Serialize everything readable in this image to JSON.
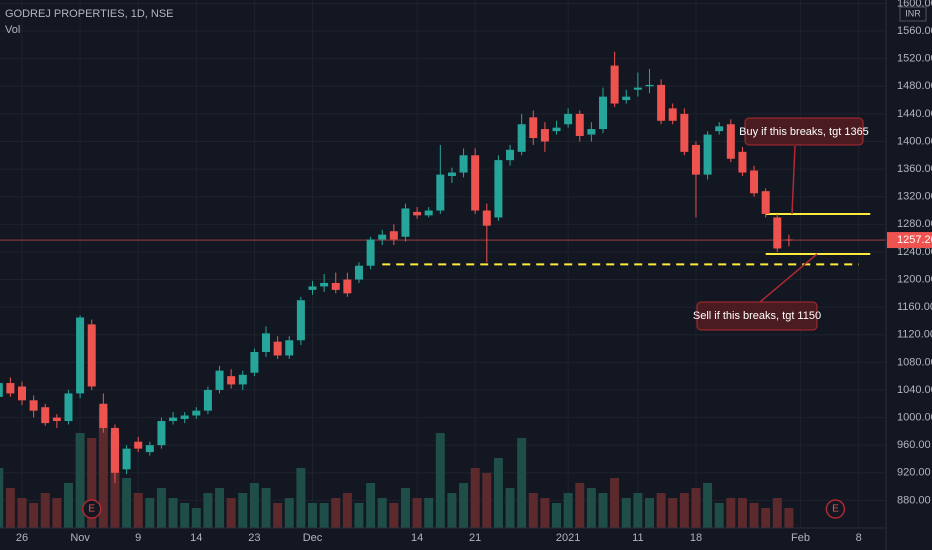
{
  "chart_data": {
    "type": "candlestick",
    "title": "GODREJ PROPERTIES, 1D, NSE",
    "volume_title": "Vol",
    "currency": "INR",
    "categories": [
      null,
      null,
      "26",
      null,
      null,
      null,
      null,
      "Nov",
      null,
      null,
      null,
      null,
      "9",
      null,
      null,
      null,
      null,
      "14",
      null,
      null,
      null,
      null,
      "23",
      null,
      null,
      null,
      null,
      "Dec",
      null,
      null,
      null,
      null,
      null,
      null,
      null,
      null,
      "14",
      null,
      null,
      null,
      null,
      "21",
      null,
      null,
      null,
      null,
      null,
      null,
      null,
      "2021",
      null,
      null,
      null,
      null,
      null,
      "11",
      null,
      null,
      null,
      null,
      "18",
      null,
      null,
      null,
      null,
      null,
      null,
      null,
      null,
      "Feb",
      null,
      null,
      null,
      null,
      "8",
      null,
      null
    ],
    "open": [
      1030,
      1050,
      1045,
      1025,
      1015,
      1000,
      995,
      1035,
      1135,
      1020,
      985,
      925,
      965,
      950,
      960,
      995,
      998,
      1003,
      1010,
      1040,
      1060,
      1048,
      1065,
      1095,
      1110,
      1090,
      1112,
      1185,
      1190,
      1195,
      1200,
      1200,
      1220,
      1258,
      1270,
      1262,
      1298,
      1293,
      1300,
      1350,
      1355,
      1380,
      1300,
      1290,
      1373,
      1385,
      1435,
      1418,
      1415,
      1425,
      1440,
      1410,
      1418,
      1510,
      1460,
      1475,
      1480,
      1482,
      1448,
      1440,
      1395,
      1352,
      1415,
      1425,
      1385,
      1358,
      1328,
      1290,
      1258,
      null,
      null,
      null,
      null,
      null,
      null,
      null,
      null
    ],
    "high": [
      1062,
      1058,
      1052,
      1032,
      1020,
      1005,
      1040,
      1148,
      1142,
      1035,
      990,
      960,
      972,
      965,
      1000,
      1008,
      1008,
      1015,
      1045,
      1075,
      1070,
      1068,
      1100,
      1132,
      1118,
      1118,
      1175,
      1198,
      1208,
      1210,
      1210,
      1225,
      1262,
      1272,
      1280,
      1310,
      1305,
      1305,
      1395,
      1362,
      1390,
      1390,
      1310,
      1380,
      1395,
      1440,
      1445,
      1428,
      1430,
      1448,
      1445,
      1428,
      1478,
      1530,
      1475,
      1500,
      1505,
      1490,
      1455,
      1448,
      1400,
      1415,
      1428,
      1432,
      1392,
      1365,
      1332,
      1295,
      1265,
      null,
      null,
      null,
      null,
      null,
      null,
      null,
      null
    ],
    "low": [
      1020,
      1030,
      1018,
      1000,
      988,
      985,
      990,
      1028,
      1040,
      978,
      905,
      918,
      950,
      945,
      955,
      990,
      992,
      998,
      1005,
      1035,
      1042,
      1040,
      1060,
      1088,
      1085,
      1085,
      1105,
      1178,
      1182,
      1180,
      1175,
      1195,
      1215,
      1250,
      1250,
      1255,
      1288,
      1290,
      1295,
      1340,
      1348,
      1295,
      1225,
      1285,
      1365,
      1380,
      1395,
      1385,
      1410,
      1420,
      1400,
      1400,
      1412,
      1450,
      1455,
      1465,
      1470,
      1425,
      1425,
      1380,
      1290,
      1345,
      1410,
      1370,
      1350,
      1320,
      1290,
      1240,
      1248,
      null,
      null,
      null,
      null,
      null,
      null,
      null,
      null
    ],
    "close": [
      1050,
      1035,
      1025,
      1010,
      992,
      995,
      1035,
      1145,
      1045,
      985,
      920,
      955,
      955,
      960,
      995,
      1000,
      1003,
      1010,
      1040,
      1068,
      1048,
      1062,
      1095,
      1122,
      1090,
      1112,
      1170,
      1190,
      1195,
      1185,
      1180,
      1220,
      1258,
      1265,
      1258,
      1303,
      1293,
      1300,
      1352,
      1355,
      1380,
      1300,
      1278,
      1373,
      1388,
      1425,
      1405,
      1400,
      1420,
      1440,
      1408,
      1418,
      1465,
      1455,
      1465,
      1478,
      1482,
      1430,
      1430,
      1385,
      1352,
      1410,
      1422,
      1375,
      1355,
      1325,
      1295,
      1245,
      1257.2,
      null,
      null,
      null,
      null,
      null,
      null,
      null,
      null
    ],
    "volume": [
      60,
      40,
      30,
      25,
      35,
      30,
      45,
      95,
      90,
      120,
      95,
      50,
      35,
      30,
      40,
      30,
      25,
      20,
      35,
      40,
      30,
      35,
      45,
      40,
      25,
      30,
      60,
      25,
      25,
      30,
      35,
      25,
      45,
      30,
      25,
      40,
      30,
      30,
      95,
      35,
      45,
      60,
      55,
      70,
      40,
      90,
      35,
      30,
      25,
      35,
      45,
      40,
      35,
      50,
      30,
      35,
      30,
      35,
      30,
      35,
      40,
      45,
      25,
      30,
      30,
      25,
      20,
      30,
      20,
      null,
      null,
      null,
      null,
      null,
      null,
      null,
      null
    ],
    "up_color": "#26a69a",
    "down_color": "#ef5350",
    "volume_up_color": "#1f4d47",
    "volume_down_color": "#5c2a2d",
    "ylim": [
      840,
      1605
    ],
    "volume_lim": [
      0,
      200
    ],
    "yticks": [
      {
        "value": 880,
        "label": "880.00"
      },
      {
        "value": 920,
        "label": "920.00"
      },
      {
        "value": 960,
        "label": "960.00"
      },
      {
        "value": 1000,
        "label": "1000.00"
      },
      {
        "value": 1040,
        "label": "1040.00"
      },
      {
        "value": 1080,
        "label": "1080.00"
      },
      {
        "value": 1120,
        "label": "1120.00"
      },
      {
        "value": 1160,
        "label": "1160.00"
      },
      {
        "value": 1200,
        "label": "1200.00"
      },
      {
        "value": 1240,
        "label": "1240.00"
      },
      {
        "value": 1280,
        "label": "1280.00"
      },
      {
        "value": 1320,
        "label": "1320.00"
      },
      {
        "value": 1360,
        "label": "1360.00"
      },
      {
        "value": 1400,
        "label": "1400.00"
      },
      {
        "value": 1440,
        "label": "1440.00"
      },
      {
        "value": 1480,
        "label": "1480.00"
      },
      {
        "value": 1520,
        "label": "1520.00"
      },
      {
        "value": 1560,
        "label": "1560.00"
      },
      {
        "value": 1600,
        "label": "1600.00"
      }
    ],
    "last_price": {
      "value": 1257.2,
      "label": "1257.20"
    },
    "levels": [
      {
        "value": 1295,
        "style": "solid",
        "from": 66,
        "to": 75
      },
      {
        "value": 1237,
        "style": "solid",
        "from": 66,
        "to": 75
      },
      {
        "value": 1222,
        "style": "dashed",
        "from": 33,
        "to": 74
      }
    ],
    "level_color": "#ffeb3b",
    "events": [
      {
        "label": "E",
        "index": 8
      },
      {
        "label": "E",
        "index": 72
      }
    ],
    "annotations": [
      "Buy if this breaks, tgt 1365",
      "Sell if this breaks, tgt 1150"
    ],
    "grid": true
  }
}
